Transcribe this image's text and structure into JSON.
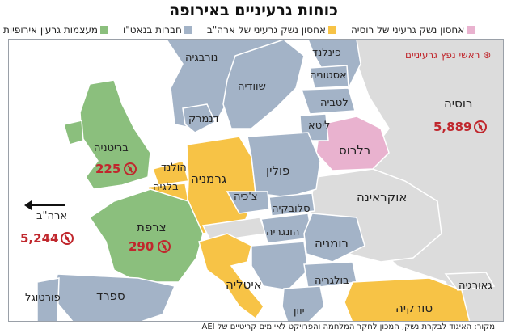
{
  "title": "כוחות גרעיניים באירופה",
  "legend": [
    {
      "label": "מעצמות גרעין אירופיות",
      "color": "#8bbf7d"
    },
    {
      "label": "חברות בנאט\"ו",
      "color": "#a3b3c7"
    },
    {
      "label": "אחסון נשק גרעיני של ארה\"ב",
      "color": "#f7c346"
    },
    {
      "label": "אחסון נשק גרעיני של רוסיה",
      "color": "#e9b2cf"
    }
  ],
  "warhead_legend": "ראשי נפץ גרעיניים",
  "colors": {
    "nuclear_power": "#8bbf7d",
    "nato": "#a3b3c7",
    "us_storage": "#f7c346",
    "russia_storage": "#e9b2cf",
    "other": "#dcdcdc",
    "sea": "#ffffff",
    "warhead": "#c0272d"
  },
  "countries": {
    "norway": "נורבגיה",
    "sweden": "שוודיה",
    "finland": "פינלנד",
    "estonia": "אסטוניה",
    "latvia": "לטביה",
    "lithuania": "ליטא",
    "denmark": "דנמרק",
    "belarus": "בלרוס",
    "russia": "רוסיה",
    "britain": "בריטניה",
    "netherlands": "הולנד",
    "belgium": "בלגיה",
    "germany": "גרמניה",
    "poland": "פולין",
    "czechia": "צ'כיה",
    "slovakia": "סלובקיה",
    "ukraine": "אוקראינה",
    "france": "צרפת",
    "hungary": "הונגריה",
    "romania": "רומניה",
    "bulgaria": "בולגריה",
    "italy": "איטליה",
    "spain": "ספרד",
    "portugal": "פורטוגל",
    "greece": "יוון",
    "turkey": "טורקיה",
    "georgia": "גאורגיה",
    "usa": "ארה\"ב"
  },
  "warheads": {
    "russia": "5,889",
    "britain": "225",
    "france": "290",
    "usa": "5,244"
  },
  "source": "מקור: האיגוד לבקרת נשק, המכון לחקר המלחמה והפרויקט לאיומים קריטיים של AEI"
}
